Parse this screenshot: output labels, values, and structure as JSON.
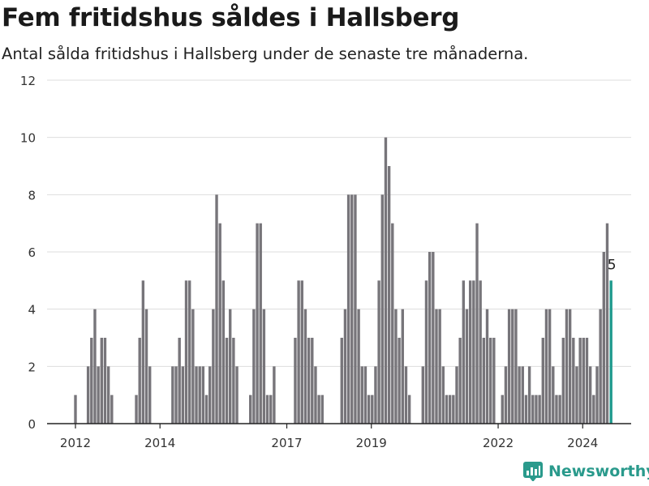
{
  "title": "Fem fritidshus såldes i Hallsberg",
  "subtitle": "Antal sålda fritidshus i Hallsberg under de senaste tre månaderna.",
  "brand": {
    "name": "Newsworthy",
    "color": "#2a9a8c",
    "icon": "bar-chart-logo-icon"
  },
  "colors": {
    "bar": "#77757a",
    "highlight": "#1f9a8d",
    "grid": "#dddddd",
    "axis": "#222222"
  },
  "chart_data": {
    "type": "bar",
    "title": "",
    "xlabel": "",
    "ylabel": "",
    "ylim": [
      0,
      12
    ],
    "yticks": [
      0,
      2,
      4,
      6,
      8,
      10,
      12
    ],
    "grid": true,
    "legend": "none",
    "xtick_labels": [
      "2012",
      "2014",
      "2017",
      "2019",
      "2022",
      "2024"
    ],
    "xtick_x": [
      2012.0,
      2014.0,
      2017.0,
      2019.0,
      2022.0,
      2024.0
    ],
    "bar_width_years": 0.065,
    "values": [
      {
        "x": 2012.0,
        "y": 1
      },
      {
        "x": 2012.3,
        "y": 2
      },
      {
        "x": 2012.38,
        "y": 3
      },
      {
        "x": 2012.46,
        "y": 4
      },
      {
        "x": 2012.54,
        "y": 2
      },
      {
        "x": 2012.62,
        "y": 3
      },
      {
        "x": 2012.7,
        "y": 3
      },
      {
        "x": 2012.78,
        "y": 2
      },
      {
        "x": 2012.86,
        "y": 1
      },
      {
        "x": 2013.44,
        "y": 1
      },
      {
        "x": 2013.52,
        "y": 3
      },
      {
        "x": 2013.6,
        "y": 5
      },
      {
        "x": 2013.68,
        "y": 4
      },
      {
        "x": 2013.76,
        "y": 2
      },
      {
        "x": 2014.3,
        "y": 2
      },
      {
        "x": 2014.38,
        "y": 2
      },
      {
        "x": 2014.46,
        "y": 3
      },
      {
        "x": 2014.54,
        "y": 2
      },
      {
        "x": 2014.62,
        "y": 5
      },
      {
        "x": 2014.7,
        "y": 5
      },
      {
        "x": 2014.78,
        "y": 4
      },
      {
        "x": 2014.86,
        "y": 2
      },
      {
        "x": 2014.94,
        "y": 2
      },
      {
        "x": 2015.02,
        "y": 2
      },
      {
        "x": 2015.1,
        "y": 1
      },
      {
        "x": 2015.18,
        "y": 2
      },
      {
        "x": 2015.26,
        "y": 4
      },
      {
        "x": 2015.34,
        "y": 8
      },
      {
        "x": 2015.42,
        "y": 7
      },
      {
        "x": 2015.5,
        "y": 5
      },
      {
        "x": 2015.58,
        "y": 3
      },
      {
        "x": 2015.66,
        "y": 4
      },
      {
        "x": 2015.74,
        "y": 3
      },
      {
        "x": 2015.82,
        "y": 2
      },
      {
        "x": 2016.14,
        "y": 1
      },
      {
        "x": 2016.22,
        "y": 4
      },
      {
        "x": 2016.3,
        "y": 7
      },
      {
        "x": 2016.38,
        "y": 7
      },
      {
        "x": 2016.46,
        "y": 4
      },
      {
        "x": 2016.54,
        "y": 1
      },
      {
        "x": 2016.62,
        "y": 1
      },
      {
        "x": 2016.7,
        "y": 2
      },
      {
        "x": 2017.2,
        "y": 3
      },
      {
        "x": 2017.28,
        "y": 5
      },
      {
        "x": 2017.36,
        "y": 5
      },
      {
        "x": 2017.44,
        "y": 4
      },
      {
        "x": 2017.52,
        "y": 3
      },
      {
        "x": 2017.6,
        "y": 3
      },
      {
        "x": 2017.68,
        "y": 2
      },
      {
        "x": 2017.76,
        "y": 1
      },
      {
        "x": 2017.84,
        "y": 1
      },
      {
        "x": 2018.3,
        "y": 3
      },
      {
        "x": 2018.38,
        "y": 4
      },
      {
        "x": 2018.46,
        "y": 8
      },
      {
        "x": 2018.54,
        "y": 8
      },
      {
        "x": 2018.62,
        "y": 8
      },
      {
        "x": 2018.7,
        "y": 4
      },
      {
        "x": 2018.78,
        "y": 2
      },
      {
        "x": 2018.86,
        "y": 2
      },
      {
        "x": 2018.94,
        "y": 1
      },
      {
        "x": 2019.02,
        "y": 1
      },
      {
        "x": 2019.1,
        "y": 2
      },
      {
        "x": 2019.18,
        "y": 5
      },
      {
        "x": 2019.26,
        "y": 8
      },
      {
        "x": 2019.34,
        "y": 10
      },
      {
        "x": 2019.42,
        "y": 9
      },
      {
        "x": 2019.5,
        "y": 7
      },
      {
        "x": 2019.58,
        "y": 4
      },
      {
        "x": 2019.66,
        "y": 3
      },
      {
        "x": 2019.74,
        "y": 4
      },
      {
        "x": 2019.82,
        "y": 2
      },
      {
        "x": 2019.9,
        "y": 1
      },
      {
        "x": 2020.22,
        "y": 2
      },
      {
        "x": 2020.3,
        "y": 5
      },
      {
        "x": 2020.38,
        "y": 6
      },
      {
        "x": 2020.46,
        "y": 6
      },
      {
        "x": 2020.54,
        "y": 4
      },
      {
        "x": 2020.62,
        "y": 4
      },
      {
        "x": 2020.7,
        "y": 2
      },
      {
        "x": 2020.78,
        "y": 1
      },
      {
        "x": 2020.86,
        "y": 1
      },
      {
        "x": 2020.94,
        "y": 1
      },
      {
        "x": 2021.02,
        "y": 2
      },
      {
        "x": 2021.1,
        "y": 3
      },
      {
        "x": 2021.18,
        "y": 5
      },
      {
        "x": 2021.26,
        "y": 4
      },
      {
        "x": 2021.34,
        "y": 5
      },
      {
        "x": 2021.42,
        "y": 5
      },
      {
        "x": 2021.5,
        "y": 7
      },
      {
        "x": 2021.58,
        "y": 5
      },
      {
        "x": 2021.66,
        "y": 3
      },
      {
        "x": 2021.74,
        "y": 4
      },
      {
        "x": 2021.82,
        "y": 3
      },
      {
        "x": 2021.9,
        "y": 3
      },
      {
        "x": 2022.1,
        "y": 1
      },
      {
        "x": 2022.18,
        "y": 2
      },
      {
        "x": 2022.26,
        "y": 4
      },
      {
        "x": 2022.34,
        "y": 4
      },
      {
        "x": 2022.42,
        "y": 4
      },
      {
        "x": 2022.5,
        "y": 2
      },
      {
        "x": 2022.58,
        "y": 2
      },
      {
        "x": 2022.66,
        "y": 1
      },
      {
        "x": 2022.74,
        "y": 2
      },
      {
        "x": 2022.82,
        "y": 1
      },
      {
        "x": 2022.9,
        "y": 1
      },
      {
        "x": 2022.98,
        "y": 1
      },
      {
        "x": 2023.06,
        "y": 3
      },
      {
        "x": 2023.14,
        "y": 4
      },
      {
        "x": 2023.22,
        "y": 4
      },
      {
        "x": 2023.3,
        "y": 2
      },
      {
        "x": 2023.38,
        "y": 1
      },
      {
        "x": 2023.46,
        "y": 1
      },
      {
        "x": 2023.54,
        "y": 3
      },
      {
        "x": 2023.62,
        "y": 4
      },
      {
        "x": 2023.7,
        "y": 4
      },
      {
        "x": 2023.78,
        "y": 3
      },
      {
        "x": 2023.86,
        "y": 2
      },
      {
        "x": 2023.94,
        "y": 3
      },
      {
        "x": 2024.02,
        "y": 3
      },
      {
        "x": 2024.1,
        "y": 3
      },
      {
        "x": 2024.18,
        "y": 2
      },
      {
        "x": 2024.26,
        "y": 1
      },
      {
        "x": 2024.34,
        "y": 2
      },
      {
        "x": 2024.42,
        "y": 4
      },
      {
        "x": 2024.5,
        "y": 6
      },
      {
        "x": 2024.58,
        "y": 7
      },
      {
        "x": 2024.67,
        "y": 5,
        "highlight": true,
        "label": "5"
      }
    ]
  }
}
